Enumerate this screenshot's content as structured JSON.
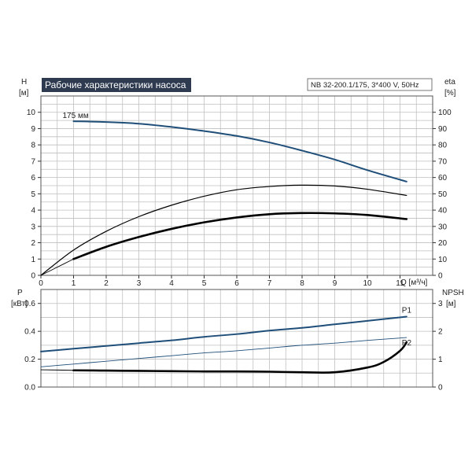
{
  "colors": {
    "title_bg": "#2e3a4f",
    "title_fg": "#ffffff",
    "blue": "#1f4e79",
    "black": "#000000"
  },
  "chart_data": [
    {
      "type": "line",
      "title": "Рабочие характеристики насоса",
      "model_label": "NB 32-200.1/175, 3*400 V, 50Hz",
      "grid": true,
      "x_axis": {
        "label": "Q [м³/ч]",
        "range": [
          0,
          12
        ],
        "ticks": [
          0,
          1,
          2,
          3,
          4,
          5,
          6,
          7,
          8,
          9,
          10,
          11
        ]
      },
      "y_left": {
        "label_top": "H",
        "label_unit": "[м]",
        "range": [
          0,
          11
        ],
        "ticks": [
          0,
          1,
          2,
          3,
          4,
          5,
          6,
          7,
          8,
          9,
          10
        ]
      },
      "y_right": {
        "label_top": "eta",
        "label_unit": "[%]",
        "range": [
          0,
          110
        ],
        "ticks": [
          0,
          10,
          20,
          30,
          40,
          50,
          60,
          70,
          80,
          90,
          100
        ]
      },
      "series": [
        {
          "name": "175 мм",
          "axis": "left",
          "color": "blue",
          "x": [
            1,
            2,
            3,
            4,
            5,
            6,
            7,
            8,
            9,
            10,
            11.2
          ],
          "y": [
            9.45,
            9.4,
            9.3,
            9.1,
            8.85,
            8.55,
            8.15,
            7.65,
            7.1,
            6.45,
            5.75
          ]
        },
        {
          "axis": "right",
          "color": "black",
          "x": [
            0,
            1,
            2,
            3,
            4,
            5,
            6,
            7,
            8,
            9,
            10,
            11.2
          ],
          "y": [
            0,
            15.5,
            27,
            36,
            43,
            48.5,
            52.5,
            54.5,
            55.3,
            54.8,
            52.8,
            49
          ]
        },
        {
          "axis": "left",
          "color": "black",
          "bold": true,
          "x": [
            1,
            2,
            3,
            4,
            5,
            6,
            7,
            8,
            9,
            10,
            11.2
          ],
          "y": [
            1.0,
            1.75,
            2.35,
            2.85,
            3.25,
            3.55,
            3.75,
            3.82,
            3.8,
            3.7,
            3.45
          ]
        },
        {
          "axis": "left",
          "color": "black",
          "thin": true,
          "x": [
            0,
            0.5,
            1
          ],
          "y": [
            0,
            0.5,
            1.0
          ]
        }
      ]
    },
    {
      "type": "line",
      "grid": true,
      "x_axis": {
        "range": [
          0,
          12
        ]
      },
      "y_left": {
        "label_top": "P",
        "label_unit": "[кВт]",
        "range": [
          0,
          0.7
        ],
        "ticks": [
          0.0,
          0.2,
          0.4,
          0.6
        ],
        "tick_labels": [
          "0.0",
          "0.2",
          "0.4",
          "0.6"
        ]
      },
      "y_right": {
        "label_top": "NPSH",
        "label_unit": "[м]",
        "range": [
          0,
          3.5
        ],
        "ticks": [
          0,
          1,
          2,
          3
        ]
      },
      "series": [
        {
          "name": "P1",
          "axis": "left",
          "color": "blue",
          "x": [
            0,
            1,
            2,
            3,
            4,
            5,
            6,
            7,
            8,
            9,
            10,
            11.2
          ],
          "y": [
            0.255,
            0.275,
            0.295,
            0.315,
            0.335,
            0.36,
            0.38,
            0.405,
            0.425,
            0.45,
            0.475,
            0.505
          ]
        },
        {
          "name": "P2",
          "axis": "left",
          "color": "blue",
          "thin": true,
          "x": [
            0,
            1,
            2,
            3,
            4,
            5,
            6,
            7,
            8,
            9,
            10,
            11.2
          ],
          "y": [
            0.145,
            0.165,
            0.185,
            0.205,
            0.225,
            0.245,
            0.26,
            0.28,
            0.3,
            0.315,
            0.335,
            0.355
          ]
        },
        {
          "axis": "right",
          "color": "black",
          "bold": true,
          "x": [
            1,
            2,
            3,
            4,
            5,
            6,
            7,
            8,
            9,
            10,
            10.5,
            11,
            11.2
          ],
          "y": [
            0.6,
            0.59,
            0.58,
            0.57,
            0.56,
            0.56,
            0.55,
            0.53,
            0.53,
            0.7,
            0.9,
            1.3,
            1.6
          ]
        },
        {
          "axis": "right",
          "color": "black",
          "thin": true,
          "x": [
            0,
            1
          ],
          "y": [
            0.62,
            0.6
          ]
        }
      ]
    }
  ]
}
